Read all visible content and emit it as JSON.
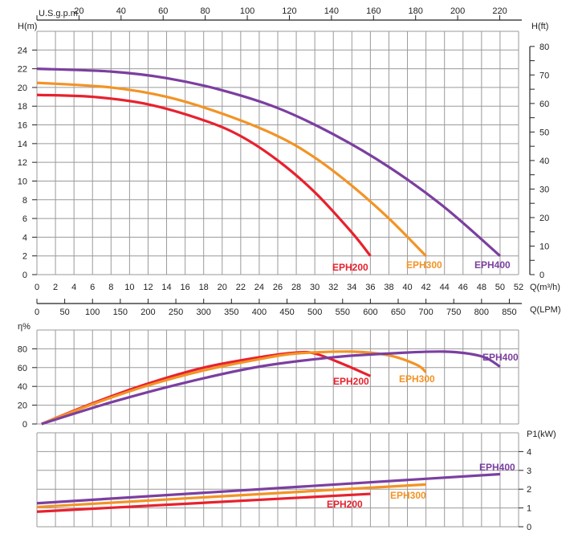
{
  "colors": {
    "EPH200": "#e8212e",
    "EPH300": "#f39325",
    "EPH400": "#7b3fa0",
    "grid": "#9a9a9a"
  },
  "chart_data": [
    {
      "type": "line",
      "title": "",
      "xlabel": "Q(m³/h)",
      "ylabel": "H(m)",
      "y2label": "H(ft)",
      "x2label": "U.S.g.p.m",
      "x3label": "Q(LPM)",
      "xlim": [
        0,
        52
      ],
      "ylim": [
        0,
        26
      ],
      "y2lim": [
        0,
        80
      ],
      "grid": true,
      "xticks": [
        0,
        2,
        4,
        6,
        8,
        10,
        12,
        14,
        16,
        18,
        20,
        22,
        24,
        26,
        28,
        30,
        32,
        34,
        36,
        38,
        40,
        42,
        44,
        46,
        48,
        50,
        52
      ],
      "yticks": [
        0,
        2,
        4,
        6,
        8,
        10,
        12,
        14,
        16,
        18,
        20,
        22,
        24
      ],
      "y2ticks": [
        0,
        10,
        20,
        30,
        40,
        50,
        60,
        70,
        80
      ],
      "x2ticks": [
        20,
        40,
        60,
        80,
        100,
        120,
        140,
        160,
        180,
        200,
        220
      ],
      "x3ticks": [
        0,
        50,
        100,
        150,
        200,
        250,
        300,
        350,
        400,
        450,
        500,
        550,
        600,
        650,
        700,
        750,
        800,
        850
      ],
      "series": [
        {
          "name": "EPH200",
          "x": [
            0,
            6,
            12,
            18,
            22,
            26,
            30,
            34,
            36
          ],
          "y": [
            19.2,
            19,
            18.2,
            16.5,
            14.8,
            12.2,
            8.8,
            4.5,
            2
          ]
        },
        {
          "name": "EPH300",
          "x": [
            0,
            8,
            14,
            20,
            26,
            30,
            34,
            38,
            42
          ],
          "y": [
            20.5,
            20,
            19,
            17.2,
            14.8,
            12.5,
            9.5,
            6,
            2
          ]
        },
        {
          "name": "EPH400",
          "x": [
            0,
            8,
            14,
            20,
            26,
            32,
            38,
            44,
            50
          ],
          "y": [
            22,
            21.7,
            21,
            19.7,
            17.8,
            15,
            11.5,
            7.2,
            2
          ]
        }
      ]
    },
    {
      "type": "line",
      "title": "",
      "ylabel": "η%",
      "xlim": [
        0,
        52
      ],
      "ylim": [
        0,
        100
      ],
      "grid": true,
      "yticks": [
        0,
        20,
        40,
        60,
        80
      ],
      "series": [
        {
          "name": "EPH200",
          "x": [
            0.5,
            6,
            12,
            18,
            24,
            28,
            30,
            33,
            36
          ],
          "y": [
            0,
            22,
            43,
            60,
            71,
            76,
            75,
            64,
            51
          ]
        },
        {
          "name": "EPH300",
          "x": [
            0.5,
            6,
            12,
            18,
            24,
            28,
            34,
            38,
            41,
            42
          ],
          "y": [
            0,
            21,
            41,
            57,
            69,
            75,
            77,
            73,
            63,
            55
          ]
        },
        {
          "name": "EPH400",
          "x": [
            0.5,
            8,
            16,
            24,
            32,
            38,
            44,
            48,
            50
          ],
          "y": [
            0,
            23,
            44,
            61,
            71,
            75,
            77,
            72,
            61
          ]
        }
      ]
    },
    {
      "type": "line",
      "title": "",
      "ylabel": "P1(kW)",
      "xlim": [
        0,
        52
      ],
      "ylim": [
        0,
        5
      ],
      "grid": true,
      "yticks": [
        0,
        1,
        2,
        3,
        4
      ],
      "series": [
        {
          "name": "EPH200",
          "x": [
            0,
            36
          ],
          "y": [
            0.8,
            1.75
          ]
        },
        {
          "name": "EPH300",
          "x": [
            0,
            42
          ],
          "y": [
            1.05,
            2.25
          ]
        },
        {
          "name": "EPH400",
          "x": [
            0,
            50
          ],
          "y": [
            1.25,
            2.8
          ]
        }
      ]
    }
  ]
}
